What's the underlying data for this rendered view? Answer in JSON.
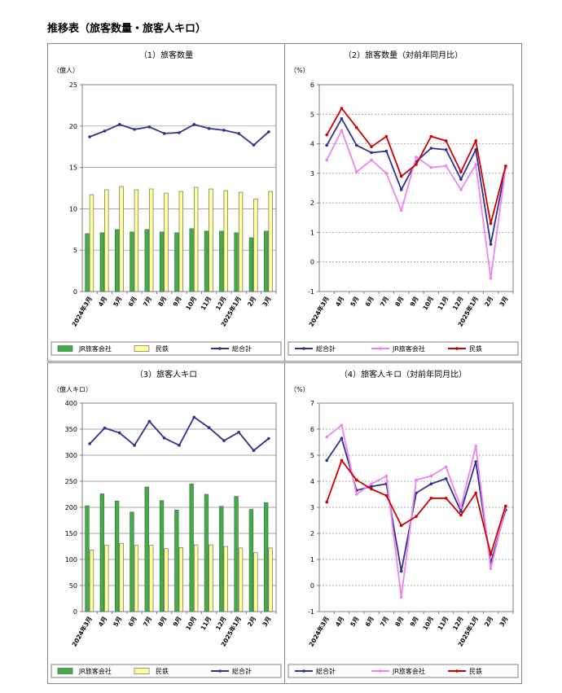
{
  "page_title": "推移表（旅客数量・旅客人キロ）",
  "colors": {
    "green": "#3CB043",
    "yellow": "#FFFF99",
    "navy": "#2E3192",
    "pink": "#EE82EE",
    "red": "#CC0000"
  },
  "chart_data": [
    {
      "type": "bar",
      "title": "（1）旅客数量",
      "ylabel": "（億人）",
      "ylim": [
        0,
        25
      ],
      "yticks": [
        0,
        5,
        10,
        15,
        20,
        25
      ],
      "categories": [
        "2024年3月",
        "4月",
        "5月",
        "6月",
        "7月",
        "8月",
        "9月",
        "10月",
        "11月",
        "12月",
        "2025年1月",
        "2月",
        "3月"
      ],
      "series": [
        {
          "name": "JR旅客会社",
          "kind": "bar",
          "color": "#3CB043",
          "values": [
            7.0,
            7.1,
            7.5,
            7.2,
            7.5,
            7.2,
            7.1,
            7.6,
            7.3,
            7.3,
            7.1,
            6.5,
            7.3
          ]
        },
        {
          "name": "民鉄",
          "kind": "bar",
          "color": "#FFFF99",
          "values": [
            11.7,
            12.3,
            12.7,
            12.3,
            12.4,
            11.9,
            12.1,
            12.6,
            12.4,
            12.2,
            12.0,
            11.2,
            12.1
          ]
        },
        {
          "name": "総合計",
          "kind": "line",
          "color": "#2E3192",
          "values": [
            18.7,
            19.4,
            20.2,
            19.6,
            19.9,
            19.1,
            19.2,
            20.2,
            19.7,
            19.5,
            19.1,
            17.7,
            19.3
          ]
        }
      ],
      "legend": "bottom"
    },
    {
      "type": "line",
      "title": "（2）旅客数量（対前年同月比）",
      "ylabel": "（%）",
      "ylim": [
        -1,
        6
      ],
      "yticks": [
        -1,
        0,
        1,
        2,
        3,
        4,
        5,
        6
      ],
      "categories": [
        "2024年3月",
        "4月",
        "5月",
        "6月",
        "7月",
        "8月",
        "9月",
        "10月",
        "11月",
        "12月",
        "2025年1月",
        "2月",
        "3月"
      ],
      "series": [
        {
          "name": "総合計",
          "color": "#2E3192",
          "values": [
            3.95,
            4.85,
            3.95,
            3.7,
            3.75,
            2.45,
            3.4,
            3.85,
            3.8,
            2.8,
            3.8,
            0.6,
            3.2
          ]
        },
        {
          "name": "JR旅客会社",
          "color": "#EE82EE",
          "values": [
            3.45,
            4.45,
            3.05,
            3.45,
            3.0,
            1.75,
            3.55,
            3.2,
            3.25,
            2.45,
            3.3,
            -0.55,
            3.2
          ]
        },
        {
          "name": "民鉄",
          "color": "#CC0000",
          "values": [
            4.3,
            5.2,
            4.55,
            3.9,
            4.25,
            2.9,
            3.3,
            4.25,
            4.1,
            3.05,
            4.1,
            1.3,
            3.25
          ]
        }
      ],
      "legend": "bottom"
    },
    {
      "type": "bar",
      "title": "（3）旅客人キロ",
      "ylabel": "（億人キロ）",
      "ylim": [
        0,
        400
      ],
      "yticks": [
        0,
        50,
        100,
        150,
        200,
        250,
        300,
        350,
        400
      ],
      "categories": [
        "2024年3月",
        "4月",
        "5月",
        "6月",
        "7月",
        "8月",
        "9月",
        "10月",
        "11月",
        "12月",
        "2025年1月",
        "2月",
        "3月"
      ],
      "series": [
        {
          "name": "JR旅客会社",
          "kind": "bar",
          "color": "#3CB043",
          "values": [
            203,
            226,
            212,
            191,
            239,
            213,
            195,
            245,
            225,
            202,
            221,
            196,
            209
          ]
        },
        {
          "name": "民鉄",
          "kind": "bar",
          "color": "#FFFF99",
          "values": [
            118,
            127,
            131,
            127,
            127,
            121,
            123,
            128,
            128,
            125,
            122,
            113,
            122
          ]
        },
        {
          "name": "総合計",
          "kind": "line",
          "color": "#2E3192",
          "values": [
            322,
            352,
            343,
            319,
            365,
            333,
            319,
            373,
            353,
            328,
            344,
            309,
            332
          ]
        }
      ],
      "legend": "bottom"
    },
    {
      "type": "line",
      "title": "（4）旅客人キロ（対前年同月比）",
      "ylabel": "（%）",
      "ylim": [
        -1,
        7
      ],
      "yticks": [
        -1,
        0,
        1,
        2,
        3,
        4,
        5,
        6,
        7
      ],
      "categories": [
        "2024年3月",
        "4月",
        "5月",
        "6月",
        "7月",
        "8月",
        "9月",
        "10月",
        "11月",
        "12月",
        "2025年1月",
        "2月",
        "3月"
      ],
      "series": [
        {
          "name": "総合計",
          "color": "#2E3192",
          "values": [
            4.8,
            5.65,
            3.65,
            3.8,
            3.9,
            0.55,
            3.55,
            3.9,
            4.1,
            2.85,
            4.75,
            0.85,
            2.9
          ]
        },
        {
          "name": "JR旅客会社",
          "color": "#EE82EE",
          "values": [
            5.7,
            6.15,
            3.5,
            3.9,
            4.2,
            -0.45,
            4.05,
            4.2,
            4.55,
            3.0,
            5.35,
            0.65,
            3.0
          ]
        },
        {
          "name": "民鉄",
          "color": "#CC0000",
          "values": [
            3.2,
            4.8,
            4.05,
            3.7,
            3.45,
            2.3,
            2.65,
            3.35,
            3.35,
            2.7,
            3.55,
            1.2,
            3.05
          ]
        }
      ],
      "legend": "bottom"
    }
  ]
}
